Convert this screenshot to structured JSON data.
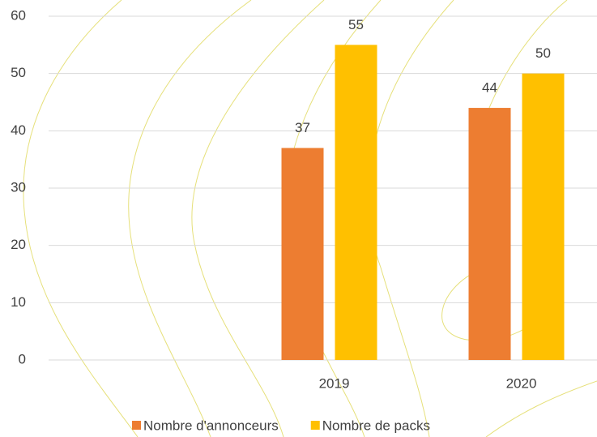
{
  "chart_data": {
    "type": "bar",
    "categories": [
      null,
      "2019",
      "2020"
    ],
    "series": [
      {
        "name": "Nombre d'annonceurs",
        "color": "#ED7D31",
        "values": [
          null,
          37,
          44
        ]
      },
      {
        "name": "Nombre de packs",
        "color": "#FFC000",
        "values": [
          null,
          55,
          50
        ]
      }
    ],
    "ylim": [
      0,
      60
    ],
    "yticks": [
      0,
      10,
      20,
      30,
      40,
      50,
      60
    ],
    "grid": true,
    "data_labels": true,
    "legend": "bottom"
  }
}
